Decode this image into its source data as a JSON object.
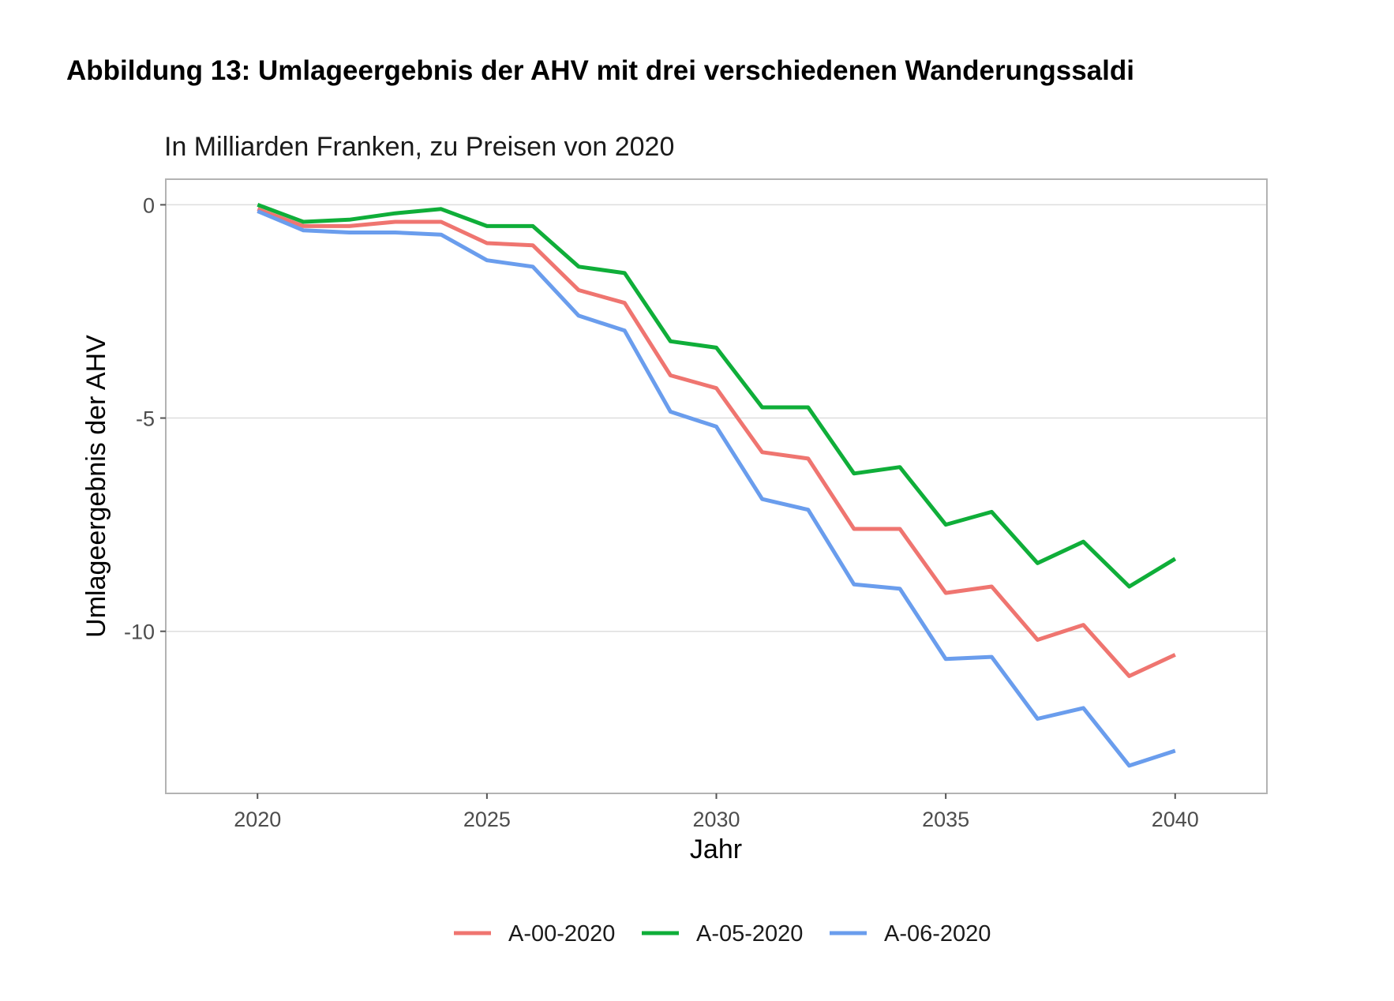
{
  "figure_title": "Abbildung 13: Umlageergebnis der AHV mit drei verschiedenen Wanderungssaldi",
  "chart_data": {
    "type": "line",
    "subtitle": "In Milliarden Franken, zu Preisen von 2020",
    "xlabel": "Jahr",
    "ylabel": "Umlageergebnis der AHV",
    "xlim": [
      2018,
      2042
    ],
    "ylim": [
      -13.8,
      0.6
    ],
    "xticks": [
      2020,
      2025,
      2030,
      2035,
      2040
    ],
    "yticks": [
      0,
      -5,
      -10
    ],
    "xtick_labels": [
      "2020",
      "2025",
      "2030",
      "2035",
      "2040"
    ],
    "ytick_labels": [
      "0",
      "-5",
      "-10"
    ],
    "grid": true,
    "legend_position": "bottom",
    "x": [
      2020,
      2021,
      2022,
      2023,
      2024,
      2025,
      2026,
      2027,
      2028,
      2029,
      2030,
      2031,
      2032,
      2033,
      2034,
      2035,
      2036,
      2037,
      2038,
      2039,
      2040
    ],
    "series": [
      {
        "name": "A-00-2020",
        "color": "#ef7570",
        "values": [
          -0.1,
          -0.5,
          -0.5,
          -0.4,
          -0.4,
          -0.9,
          -0.95,
          -2.0,
          -2.3,
          -4.0,
          -4.3,
          -5.8,
          -5.95,
          -7.6,
          -7.6,
          -9.1,
          -8.95,
          -10.2,
          -9.85,
          -11.05,
          -10.55
        ]
      },
      {
        "name": "A-05-2020",
        "color": "#0fae39",
        "values": [
          0.0,
          -0.4,
          -0.35,
          -0.2,
          -0.1,
          -0.5,
          -0.5,
          -1.45,
          -1.6,
          -3.2,
          -3.35,
          -4.75,
          -4.75,
          -6.3,
          -6.15,
          -7.5,
          -7.2,
          -8.4,
          -7.9,
          -8.95,
          -8.3
        ]
      },
      {
        "name": "A-06-2020",
        "color": "#6a9ded",
        "values": [
          -0.15,
          -0.6,
          -0.65,
          -0.65,
          -0.7,
          -1.3,
          -1.45,
          -2.6,
          -2.95,
          -4.85,
          -5.2,
          -6.9,
          -7.15,
          -8.9,
          -9.0,
          -10.65,
          -10.6,
          -12.05,
          -11.8,
          -13.15,
          -12.8
        ]
      }
    ]
  }
}
